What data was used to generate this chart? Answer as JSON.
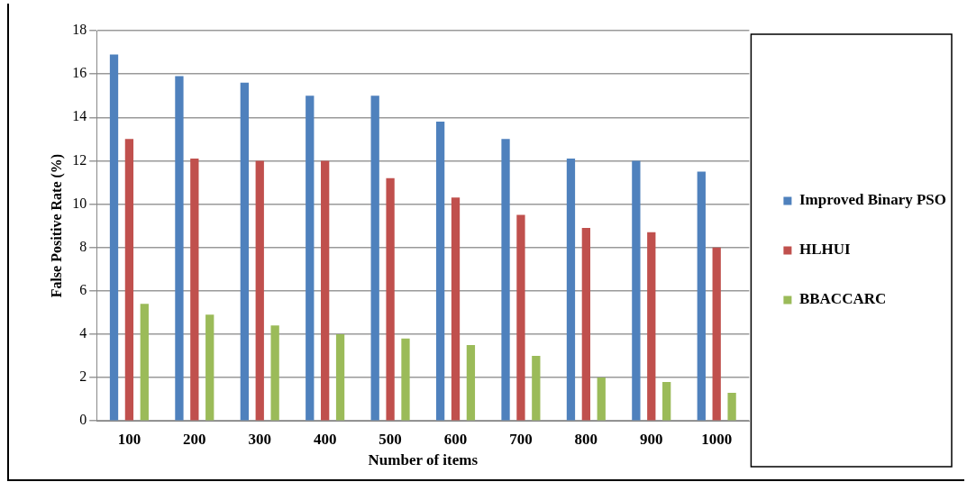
{
  "chart_data": {
    "type": "bar",
    "xlabel": "Number of items",
    "ylabel": "False Positive Rate (%)",
    "categories": [
      "100",
      "200",
      "300",
      "400",
      "500",
      "600",
      "700",
      "800",
      "900",
      "1000"
    ],
    "series": [
      {
        "name": "Improved Binary PSO",
        "color": "#4f81bd",
        "values": [
          16.9,
          15.9,
          15.6,
          15.0,
          15.0,
          13.8,
          13.0,
          12.1,
          12.0,
          11.5
        ]
      },
      {
        "name": "HLHUI",
        "color": "#c0504d",
        "values": [
          13.0,
          12.1,
          12.0,
          12.0,
          11.2,
          10.3,
          9.5,
          8.9,
          8.7,
          8.0
        ]
      },
      {
        "name": "BBACCARC",
        "color": "#9bbb59",
        "values": [
          5.4,
          4.9,
          4.4,
          4.0,
          3.8,
          3.5,
          3.0,
          2.0,
          1.8,
          1.3
        ]
      }
    ],
    "ylim": [
      0,
      18
    ],
    "yticks": [
      0,
      2,
      4,
      6,
      8,
      10,
      12,
      14,
      16,
      18
    ],
    "grid": "y",
    "legend": "right"
  }
}
